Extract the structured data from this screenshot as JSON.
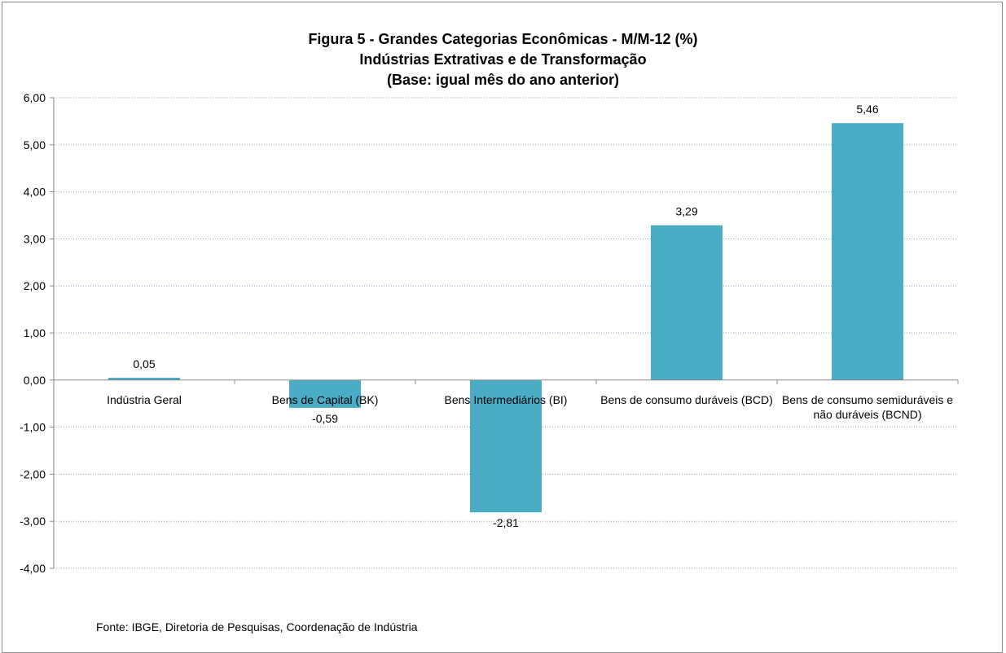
{
  "chart_data": {
    "type": "bar",
    "title": "Figura 5 - Grandes Categorias Econômicas - M/M-12 (%)",
    "subtitle": "Indústrias Extrativas e de Transformação",
    "subtitle2": "(Base: igual mês do ano anterior)",
    "categories": [
      [
        "Indústria Geral"
      ],
      [
        "Bens de Capital (BK)"
      ],
      [
        "Bens Intermediários (BI)"
      ],
      [
        "Bens de consumo duráveis (BCD)"
      ],
      [
        "Bens de consumo semiduráveis e",
        "não duráveis (BCND)"
      ]
    ],
    "values": [
      0.05,
      -0.59,
      -2.81,
      3.29,
      5.46
    ],
    "value_labels": [
      "0,05",
      "-0,59",
      "-2,81",
      "3,29",
      "5,46"
    ],
    "ylim": [
      -4,
      6
    ],
    "yticks": [
      6,
      5,
      4,
      3,
      2,
      1,
      0,
      -1,
      -2,
      -3,
      -4
    ],
    "ytick_labels": [
      "6,00",
      "5,00",
      "4,00",
      "3,00",
      "2,00",
      "1,00",
      "0,00",
      "-1,00",
      "-2,00",
      "-3,00",
      "-4,00"
    ],
    "xlabel": "",
    "ylabel": "",
    "grid": true,
    "bar_color": "#4bacc6",
    "grid_color": "#8aa4c8"
  },
  "source": "Fonte: IBGE, Diretoria de Pesquisas, Coordenação de Indústria"
}
